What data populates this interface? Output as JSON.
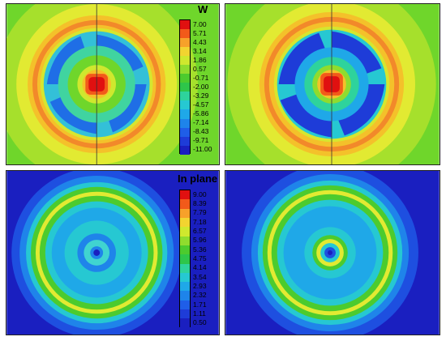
{
  "panels": [
    {
      "id": "w-left",
      "kind": "W"
    },
    {
      "id": "w-right",
      "kind": "W"
    },
    {
      "id": "inplane-left",
      "kind": "InPlane"
    },
    {
      "id": "inplane-right",
      "kind": "InPlane"
    }
  ],
  "legend_w": {
    "title": "W",
    "levels": [
      "7.00",
      "5.71",
      "4.43",
      "3.14",
      "1.86",
      "0.57",
      "-0.71",
      "-2.00",
      "-3.29",
      "-4.57",
      "-5.86",
      "-7.14",
      "-8.43",
      "-9.71",
      "-11.00"
    ],
    "colors": [
      "#e01010",
      "#f25a1a",
      "#f7a12a",
      "#f2d430",
      "#cfe82e",
      "#8fdc2e",
      "#4ccb2e",
      "#2ec64a",
      "#2ed39c",
      "#26c8d2",
      "#1fa8e8",
      "#1e84ea",
      "#1f5ee8",
      "#1e3cd8",
      "#1a1fc0"
    ]
  },
  "legend_inplane": {
    "title": "In plane",
    "levels": [
      "9.00",
      "8.39",
      "7.79",
      "7.18",
      "6.57",
      "5.96",
      "5.36",
      "4.75",
      "4.14",
      "3.54",
      "2.93",
      "2.32",
      "1.71",
      "1.11",
      "0.50"
    ],
    "colors": [
      "#e01010",
      "#f25a1a",
      "#f7a12a",
      "#f2d430",
      "#cfe82e",
      "#8fdc2e",
      "#4ccb2e",
      "#2ec64a",
      "#2ed39c",
      "#26c8d2",
      "#1fa8e8",
      "#1e84ea",
      "#1f5ee8",
      "#1e3cd8",
      "#1a1fc0"
    ]
  }
}
